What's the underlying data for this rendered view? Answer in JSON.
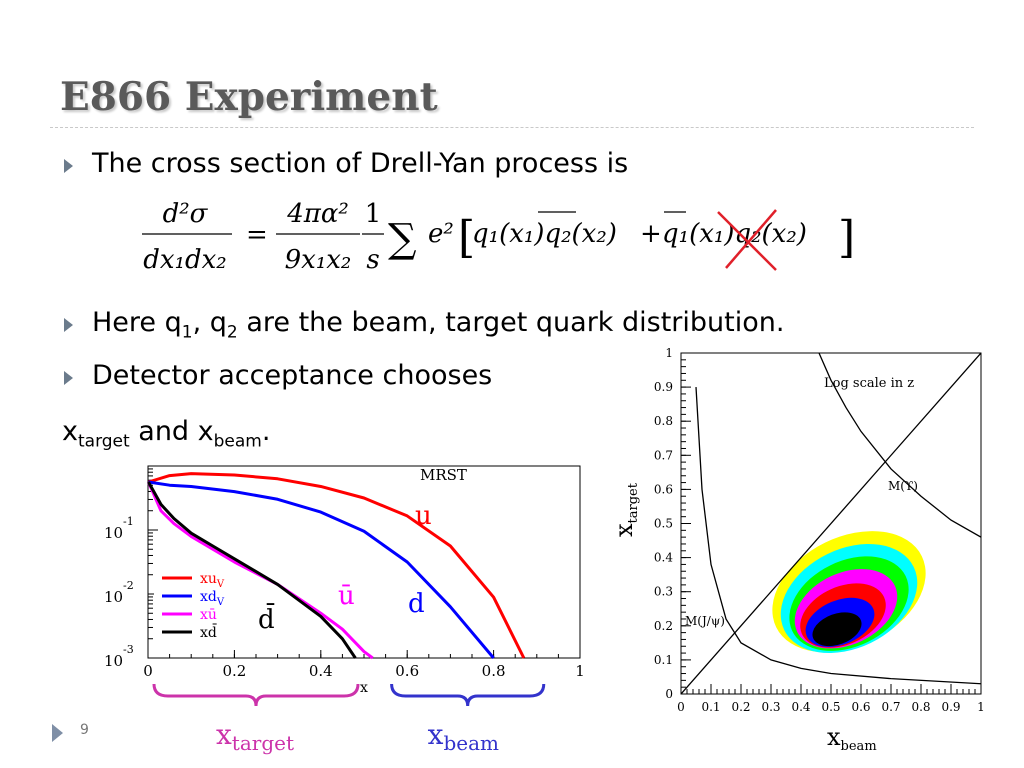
{
  "slide": {
    "title": "E866 Experiment",
    "page_number": "9"
  },
  "bullets": {
    "b1": "The cross section of Drell-Yan process is",
    "b2_pre": "Here q",
    "b2_s1": "1",
    "b2_mid": ", q",
    "b2_s2": "2",
    "b2_post": " are the beam, target quark distribution.",
    "b3": "Detector acceptance chooses",
    "b4_x1": "x",
    "b4_s1": "target",
    "b4_and": " and x",
    "b4_s2": "beam",
    "b4_end": "."
  },
  "formula": {
    "lhs_num": "d²σ",
    "lhs_den": "dx₁dx₂",
    "eq": "=",
    "c_num": "4πα²",
    "c_den": "9x₁x₂",
    "s_num": "1",
    "s_den": "s",
    "sum": "∑",
    "e2": "e²",
    "term1": "q₁(x₁)q₂(x₂)",
    "plus": "+",
    "term2": "q₁(x₁)q₂(x₂)",
    "lbr": "[",
    "rbr": "]"
  },
  "chart_data": [
    {
      "type": "line",
      "title": "MRST",
      "xlabel": "x",
      "ylabel": "",
      "xlim": [
        0,
        1
      ],
      "ylim_log10": [
        -3,
        0
      ],
      "x_ticks": [
        "0",
        "0.2",
        "0.4",
        "0.6",
        "0.8",
        "1"
      ],
      "y_ticks": [
        {
          "base": "10",
          "exp": "-1",
          "value": -1
        },
        {
          "base": "10",
          "exp": "-2",
          "value": -2
        },
        {
          "base": "10",
          "exp": "-3",
          "value": -3
        }
      ],
      "legend": [
        "xu",
        "xd",
        "xū",
        "xd̄"
      ],
      "legend_sub": [
        "V",
        "V",
        "",
        ""
      ],
      "legend_placement": "lower-left",
      "series": [
        {
          "name": "xu",
          "color": "#ff0000",
          "x": [
            0.001,
            0.05,
            0.1,
            0.2,
            0.3,
            0.4,
            0.5,
            0.6,
            0.7,
            0.8,
            0.87
          ],
          "log10y": [
            -0.25,
            -0.15,
            -0.12,
            -0.14,
            -0.2,
            -0.32,
            -0.5,
            -0.78,
            -1.25,
            -2.05,
            -3.0
          ]
        },
        {
          "name": "xd",
          "color": "#0000ff",
          "x": [
            0.001,
            0.05,
            0.1,
            0.2,
            0.3,
            0.4,
            0.5,
            0.6,
            0.7,
            0.8
          ],
          "log10y": [
            -0.25,
            -0.3,
            -0.32,
            -0.4,
            -0.52,
            -0.72,
            -1.02,
            -1.5,
            -2.2,
            -3.0
          ]
        },
        {
          "name": "xū",
          "color": "#ff00ff",
          "x": [
            0.001,
            0.03,
            0.06,
            0.1,
            0.15,
            0.2,
            0.3,
            0.4,
            0.45,
            0.5,
            0.52
          ],
          "log10y": [
            -0.25,
            -0.7,
            -0.9,
            -1.1,
            -1.3,
            -1.5,
            -1.85,
            -2.3,
            -2.55,
            -2.9,
            -3.0
          ]
        },
        {
          "name": "xd̄",
          "color": "#000000",
          "x": [
            0.001,
            0.03,
            0.06,
            0.1,
            0.15,
            0.2,
            0.3,
            0.4,
            0.45,
            0.48
          ],
          "log10y": [
            -0.25,
            -0.6,
            -0.82,
            -1.05,
            -1.25,
            -1.45,
            -1.85,
            -2.35,
            -2.7,
            -3.0
          ]
        }
      ],
      "curve_labels": [
        {
          "text": "u",
          "color": "#ff0000"
        },
        {
          "text": "ū",
          "color": "#ff00ff"
        },
        {
          "text": "d",
          "color": "#0000ff"
        },
        {
          "text": "d̄",
          "color": "#000000"
        }
      ],
      "brace_labels": [
        {
          "base": "x",
          "sub": "target",
          "color": "#cc33aa",
          "range": [
            0,
            0.5
          ]
        },
        {
          "base": "x",
          "sub": "beam",
          "color": "#3333cc",
          "range": [
            0.55,
            0.93
          ]
        }
      ]
    },
    {
      "type": "heatmap",
      "title": "",
      "annotation": "Log scale in z",
      "xlabel_base": "x",
      "xlabel_sub": "beam",
      "ylabel_base": "x",
      "ylabel_sub": "target",
      "xlim": [
        0,
        1
      ],
      "ylim": [
        0,
        1
      ],
      "x_ticks": [
        "0",
        "0.1",
        "0.2",
        "0.3",
        "0.4",
        "0.5",
        "0.6",
        "0.7",
        "0.8",
        "0.9",
        "1"
      ],
      "y_ticks": [
        "0",
        "0.1",
        "0.2",
        "0.3",
        "0.4",
        "0.5",
        "0.6",
        "0.7",
        "0.8",
        "0.9",
        "1"
      ],
      "mass_labels": [
        "M(ϒ)",
        "M(J/ψ)"
      ],
      "mass_curves": [
        {
          "name": "M(ϒ)",
          "x": [
            0.46,
            0.5,
            0.55,
            0.6,
            0.7,
            0.8,
            0.9,
            1.0
          ],
          "y": [
            1.0,
            0.92,
            0.84,
            0.77,
            0.66,
            0.58,
            0.51,
            0.46
          ]
        },
        {
          "name": "M(J/ψ)",
          "x": [
            0.05,
            0.07,
            0.1,
            0.15,
            0.2,
            0.3,
            0.4,
            0.5,
            0.7,
            1.0
          ],
          "y": [
            0.9,
            0.6,
            0.38,
            0.22,
            0.15,
            0.1,
            0.075,
            0.06,
            0.045,
            0.03
          ]
        }
      ],
      "diagonal": {
        "x": [
          0,
          1
        ],
        "y": [
          0,
          1
        ]
      },
      "acceptance_layers": [
        {
          "color": "#ffff00",
          "cx": 0.56,
          "cy": 0.3,
          "rx": 0.27,
          "ry": 0.16,
          "rot": -26
        },
        {
          "color": "#00ffff",
          "cx": 0.56,
          "cy": 0.28,
          "rx": 0.24,
          "ry": 0.145,
          "rot": -26
        },
        {
          "color": "#00ff00",
          "cx": 0.56,
          "cy": 0.265,
          "rx": 0.21,
          "ry": 0.125,
          "rot": -26
        },
        {
          "color": "#ff00ff",
          "cx": 0.55,
          "cy": 0.25,
          "rx": 0.18,
          "ry": 0.105,
          "rot": -25
        },
        {
          "color": "#ff0000",
          "cx": 0.54,
          "cy": 0.23,
          "rx": 0.15,
          "ry": 0.085,
          "rot": -24
        },
        {
          "color": "#0000ff",
          "cx": 0.53,
          "cy": 0.21,
          "rx": 0.12,
          "ry": 0.065,
          "rot": -22
        },
        {
          "color": "#000000",
          "cx": 0.52,
          "cy": 0.19,
          "rx": 0.085,
          "ry": 0.045,
          "rot": -20
        }
      ]
    }
  ]
}
